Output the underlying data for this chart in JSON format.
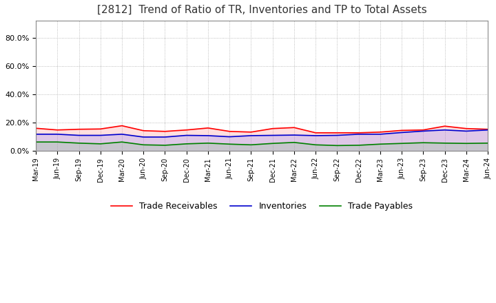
{
  "title": "[2812]  Trend of Ratio of TR, Inventories and TP to Total Assets",
  "title_fontsize": 11,
  "ylim": [
    0.0,
    0.92
  ],
  "yticks": [
    0.0,
    0.2,
    0.4,
    0.6,
    0.8
  ],
  "yticklabels": [
    "0.0%",
    "20.0%",
    "40.0%",
    "60.0%",
    "80.0%"
  ],
  "dates": [
    "Mar-19",
    "Jun-19",
    "Sep-19",
    "Dec-19",
    "Mar-20",
    "Jun-20",
    "Sep-20",
    "Dec-20",
    "Mar-21",
    "Jun-21",
    "Sep-21",
    "Dec-21",
    "Mar-22",
    "Jun-22",
    "Sep-22",
    "Dec-22",
    "Mar-23",
    "Jun-23",
    "Sep-23",
    "Dec-23",
    "Mar-24",
    "Jun-24"
  ],
  "trade_receivables": [
    0.16,
    0.148,
    0.153,
    0.155,
    0.178,
    0.143,
    0.138,
    0.148,
    0.162,
    0.138,
    0.133,
    0.158,
    0.165,
    0.128,
    0.128,
    0.128,
    0.133,
    0.145,
    0.148,
    0.175,
    0.158,
    0.153
  ],
  "inventories": [
    0.118,
    0.118,
    0.11,
    0.11,
    0.118,
    0.098,
    0.098,
    0.11,
    0.108,
    0.1,
    0.108,
    0.11,
    0.112,
    0.108,
    0.11,
    0.118,
    0.118,
    0.13,
    0.14,
    0.148,
    0.14,
    0.148
  ],
  "trade_payables": [
    0.063,
    0.063,
    0.055,
    0.05,
    0.063,
    0.043,
    0.04,
    0.05,
    0.055,
    0.048,
    0.043,
    0.053,
    0.06,
    0.043,
    0.038,
    0.04,
    0.048,
    0.053,
    0.058,
    0.055,
    0.053,
    0.055
  ],
  "tr_color": "#FF0000",
  "inv_color": "#0000CD",
  "tp_color": "#008000",
  "fill_tr_color": "#FF8080",
  "fill_inv_color": "#8080FF",
  "fill_tp_color": "#80C080",
  "fill_alpha": 0.25,
  "line_width": 1.2,
  "background_color": "#FFFFFF",
  "grid_color": "#AAAAAA",
  "legend_labels": [
    "Trade Receivables",
    "Inventories",
    "Trade Payables"
  ]
}
